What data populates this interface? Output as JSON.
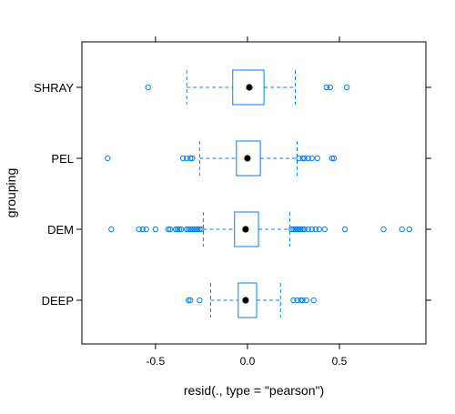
{
  "colors": {
    "box": "#0080ff",
    "frame": "#000000",
    "median": "#000000",
    "background": "#ffffff"
  },
  "chart_data": {
    "type": "box",
    "orientation": "horizontal",
    "xlabel": "resid(., type = \"pearson\")",
    "ylabel": "grouping",
    "xlim": [
      -0.9,
      0.97
    ],
    "xticks": [
      -0.5,
      0.0,
      0.5
    ],
    "xtick_labels": [
      "-0.5",
      "0.0",
      "0.5"
    ],
    "categories": [
      "SHRAY",
      "PEL",
      "DEM",
      "DEEP"
    ],
    "groups": [
      {
        "name": "SHRAY",
        "whisker_low": -0.33,
        "q1": -0.08,
        "median": 0.01,
        "q3": 0.09,
        "whisker_high": 0.26,
        "outliers": [
          -0.54,
          0.43,
          0.45,
          0.54
        ]
      },
      {
        "name": "PEL",
        "whisker_low": -0.26,
        "q1": -0.06,
        "median": 0.0,
        "q3": 0.07,
        "whisker_high": 0.27,
        "outliers": [
          -0.76,
          -0.35,
          -0.33,
          -0.31,
          -0.3,
          0.28,
          0.3,
          0.31,
          0.33,
          0.35,
          0.38,
          0.46,
          0.47
        ]
      },
      {
        "name": "DEM",
        "whisker_low": -0.24,
        "q1": -0.07,
        "median": -0.01,
        "q3": 0.06,
        "whisker_high": 0.23,
        "outliers": [
          -0.74,
          -0.59,
          -0.57,
          -0.55,
          -0.5,
          -0.43,
          -0.42,
          -0.39,
          -0.38,
          -0.37,
          -0.36,
          -0.33,
          -0.32,
          -0.31,
          -0.3,
          -0.29,
          -0.28,
          -0.27,
          -0.26,
          -0.25,
          0.24,
          0.25,
          0.26,
          0.27,
          0.28,
          0.29,
          0.3,
          0.31,
          0.33,
          0.35,
          0.37,
          0.39,
          0.42,
          0.53,
          0.74,
          0.84,
          0.88
        ]
      },
      {
        "name": "DEEP",
        "whisker_low": -0.2,
        "q1": -0.05,
        "median": -0.01,
        "q3": 0.05,
        "whisker_high": 0.18,
        "outliers": [
          -0.32,
          -0.31,
          -0.26,
          0.25,
          0.27,
          0.29,
          0.3,
          0.32,
          0.36
        ]
      }
    ]
  }
}
